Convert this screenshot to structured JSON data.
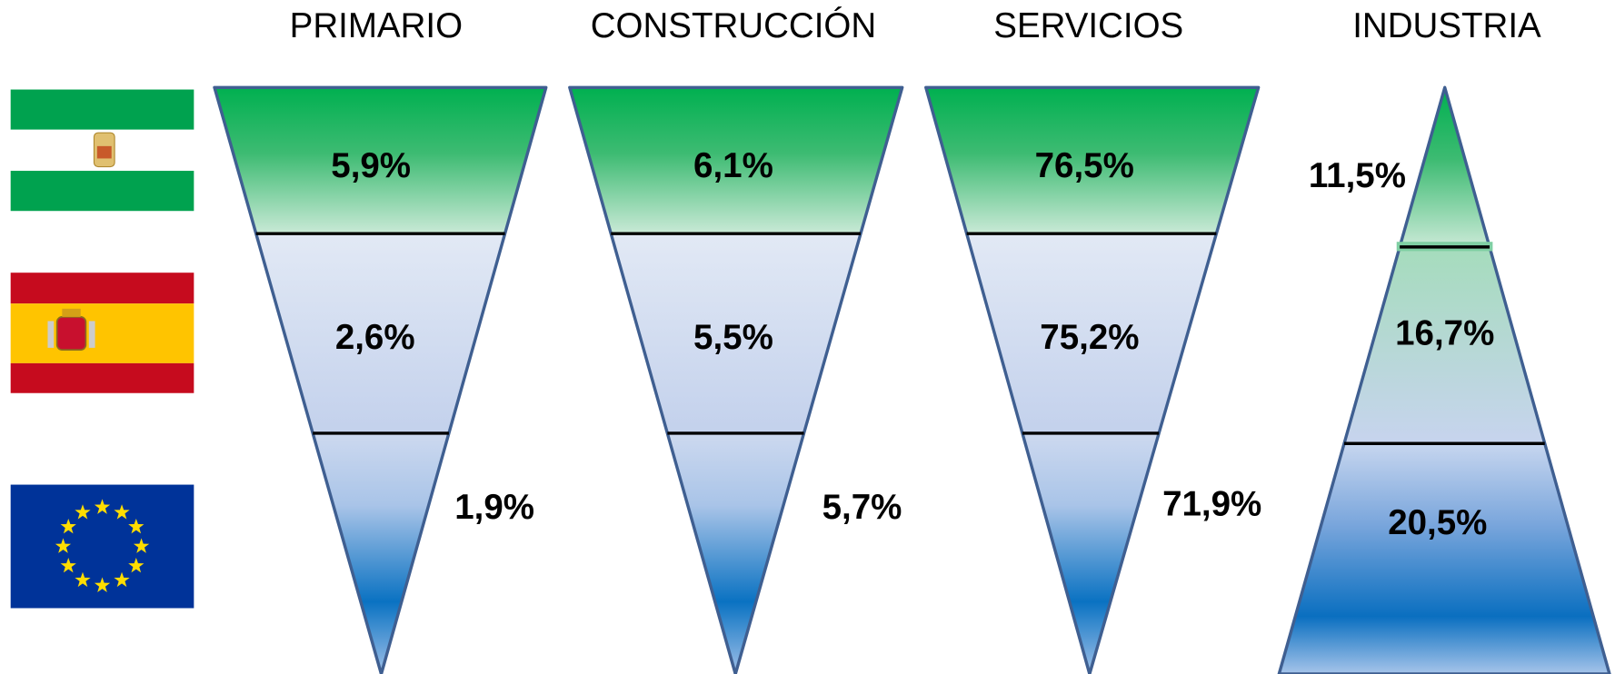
{
  "columns": [
    {
      "title": "PRIMARIO",
      "values": [
        "5,9%",
        "2,6%",
        "1,9%"
      ]
    },
    {
      "title": "CONSTRUCCIÓN",
      "values": [
        "6,1%",
        "5,5%",
        "5,7%"
      ]
    },
    {
      "title": "SERVICIOS",
      "values": [
        "76,5%",
        "75,2%",
        "71,9%"
      ]
    },
    {
      "title": "INDUSTRIA",
      "values": [
        "11,5%",
        "16,7%",
        "20,5%"
      ]
    }
  ]
}
